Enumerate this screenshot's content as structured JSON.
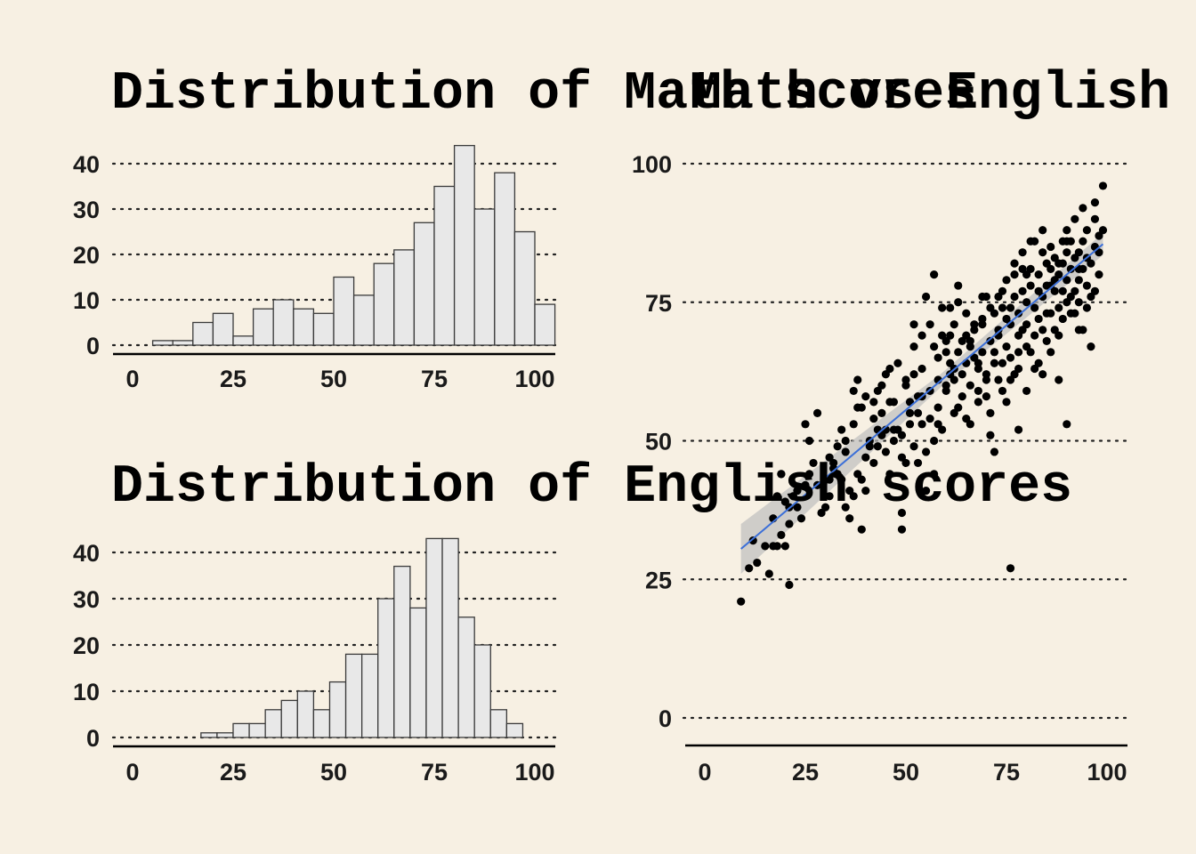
{
  "colors": {
    "background": "#f7f0e3",
    "bar_fill": "#e8e8e8",
    "bar_stroke": "#3a3a3a",
    "point": "#000000",
    "fit_line": "#3b6fd8",
    "confidence_band": "#bdbdbd"
  },
  "chart_data": [
    {
      "type": "bar",
      "title": "Distribution of Math scores",
      "xlim": [
        0,
        100
      ],
      "ylim": [
        0,
        40
      ],
      "x_ticks": [
        "0",
        "25",
        "50",
        "75",
        "100"
      ],
      "y_ticks": [
        "0",
        "10",
        "20",
        "30",
        "40"
      ],
      "grid": "horizontal dotted",
      "bin_width": 5,
      "bin_edges_start": 5,
      "values": [
        1,
        1,
        5,
        7,
        2,
        8,
        10,
        8,
        7,
        15,
        11,
        18,
        21,
        27,
        35,
        44,
        30,
        38,
        25,
        9
      ]
    },
    {
      "type": "bar",
      "title": "Distribution of English scores",
      "xlim": [
        0,
        100
      ],
      "ylim": [
        0,
        40
      ],
      "x_ticks": [
        "0",
        "25",
        "50",
        "75",
        "100"
      ],
      "y_ticks": [
        "0",
        "10",
        "20",
        "30",
        "40"
      ],
      "grid": "horizontal dotted",
      "bin_width": 4,
      "bin_edges_start": 17,
      "values": [
        1,
        1,
        3,
        3,
        6,
        8,
        10,
        6,
        12,
        18,
        18,
        30,
        37,
        28,
        43,
        43,
        26,
        20,
        6,
        3
      ]
    },
    {
      "type": "scatter",
      "title": "Math vs English",
      "xlim": [
        0,
        100
      ],
      "ylim": [
        0,
        100
      ],
      "x_ticks": [
        "0",
        "25",
        "50",
        "75",
        "100"
      ],
      "y_ticks": [
        "0",
        "25",
        "50",
        "75",
        "100"
      ],
      "grid": "horizontal dotted",
      "trend": {
        "x": [
          9,
          99
        ],
        "y": [
          30.5,
          85.5
        ],
        "band": [
          4.5,
          2.0
        ]
      },
      "points": [
        [
          9,
          21
        ],
        [
          11,
          27
        ],
        [
          16,
          26
        ],
        [
          18,
          31
        ],
        [
          19,
          33
        ],
        [
          20,
          31
        ],
        [
          21,
          24
        ],
        [
          17,
          31
        ],
        [
          18,
          40
        ],
        [
          19,
          44
        ],
        [
          20,
          39
        ],
        [
          21,
          38
        ],
        [
          23,
          41
        ],
        [
          24,
          36
        ],
        [
          25,
          53
        ],
        [
          26,
          44
        ],
        [
          28,
          42
        ],
        [
          30,
          38
        ],
        [
          31,
          40
        ],
        [
          31,
          47
        ],
        [
          32,
          46
        ],
        [
          33,
          49
        ],
        [
          33,
          44
        ],
        [
          34,
          43
        ],
        [
          35,
          50
        ],
        [
          35,
          38
        ],
        [
          36,
          36
        ],
        [
          37,
          53
        ],
        [
          37,
          40
        ],
        [
          38,
          56
        ],
        [
          38,
          61
        ],
        [
          39,
          43
        ],
        [
          39,
          34
        ],
        [
          40,
          58
        ],
        [
          40,
          41
        ],
        [
          41,
          50
        ],
        [
          42,
          54
        ],
        [
          42,
          46
        ],
        [
          43,
          49
        ],
        [
          43,
          52
        ],
        [
          44,
          55
        ],
        [
          44,
          60
        ],
        [
          45,
          62
        ],
        [
          45,
          48
        ],
        [
          46,
          63
        ],
        [
          46,
          57
        ],
        [
          47,
          57
        ],
        [
          48,
          64
        ],
        [
          48,
          52
        ],
        [
          49,
          37
        ],
        [
          49,
          47
        ],
        [
          49,
          34
        ],
        [
          50,
          46
        ],
        [
          50,
          60
        ],
        [
          51,
          57
        ],
        [
          51,
          53
        ],
        [
          52,
          49
        ],
        [
          52,
          67
        ],
        [
          53,
          58
        ],
        [
          53,
          55
        ],
        [
          54,
          53
        ],
        [
          54,
          63
        ],
        [
          55,
          41
        ],
        [
          55,
          76
        ],
        [
          56,
          54
        ],
        [
          56,
          59
        ],
        [
          57,
          50
        ],
        [
          57,
          80
        ],
        [
          58,
          56
        ],
        [
          58,
          53
        ],
        [
          59,
          52
        ],
        [
          59,
          74
        ],
        [
          60,
          60
        ],
        [
          60,
          66
        ],
        [
          61,
          62
        ],
        [
          61,
          69
        ],
        [
          62,
          63
        ],
        [
          62,
          71
        ],
        [
          63,
          56
        ],
        [
          63,
          66
        ],
        [
          63,
          78
        ],
        [
          64,
          62
        ],
        [
          64,
          68
        ],
        [
          65,
          73
        ],
        [
          65,
          54
        ],
        [
          66,
          67
        ],
        [
          66,
          60
        ],
        [
          67,
          65
        ],
        [
          67,
          70
        ],
        [
          68,
          64
        ],
        [
          68,
          59
        ],
        [
          69,
          71
        ],
        [
          69,
          66
        ],
        [
          70,
          62
        ],
        [
          70,
          76
        ],
        [
          71,
          55
        ],
        [
          71,
          68
        ],
        [
          72,
          73
        ],
        [
          72,
          66
        ],
        [
          72,
          48
        ],
        [
          73,
          61
        ],
        [
          73,
          69
        ],
        [
          74,
          74
        ],
        [
          74,
          64
        ],
        [
          75,
          57
        ],
        [
          75,
          67
        ],
        [
          75,
          79
        ],
        [
          76,
          71
        ],
        [
          76,
          65
        ],
        [
          77,
          76
        ],
        [
          77,
          62
        ],
        [
          77,
          82
        ],
        [
          78,
          73
        ],
        [
          78,
          66
        ],
        [
          78,
          69
        ],
        [
          79,
          77
        ],
        [
          79,
          84
        ],
        [
          80,
          59
        ],
        [
          80,
          71
        ],
        [
          80,
          75
        ],
        [
          81,
          66
        ],
        [
          81,
          78
        ],
        [
          81,
          81
        ],
        [
          82,
          74
        ],
        [
          82,
          69
        ],
        [
          83,
          64
        ],
        [
          83,
          72
        ],
        [
          83,
          80
        ],
        [
          84,
          76
        ],
        [
          84,
          62
        ],
        [
          84,
          84
        ],
        [
          85,
          73
        ],
        [
          85,
          78
        ],
        [
          85,
          68
        ],
        [
          86,
          81
        ],
        [
          86,
          73
        ],
        [
          86,
          85
        ],
        [
          87,
          70
        ],
        [
          87,
          77
        ],
        [
          87,
          83
        ],
        [
          88,
          61
        ],
        [
          88,
          74
        ],
        [
          88,
          80
        ],
        [
          89,
          86
        ],
        [
          89,
          72
        ],
        [
          89,
          77
        ],
        [
          90,
          79
        ],
        [
          90,
          84
        ],
        [
          90,
          88
        ],
        [
          90,
          53
        ],
        [
          91,
          73
        ],
        [
          91,
          81
        ],
        [
          91,
          86
        ],
        [
          92,
          77
        ],
        [
          92,
          83
        ],
        [
          92,
          90
        ],
        [
          93,
          75
        ],
        [
          93,
          79
        ],
        [
          93,
          84
        ],
        [
          94,
          81
        ],
        [
          94,
          86
        ],
        [
          94,
          92
        ],
        [
          95,
          78
        ],
        [
          95,
          88
        ],
        [
          96,
          82
        ],
        [
          96,
          67
        ],
        [
          97,
          85
        ],
        [
          97,
          90
        ],
        [
          97,
          93
        ],
        [
          98,
          87
        ],
        [
          98,
          80
        ],
        [
          99,
          96
        ],
        [
          99,
          88
        ],
        [
          76,
          27
        ],
        [
          71,
          51
        ],
        [
          78,
          52
        ],
        [
          61,
          64
        ],
        [
          65,
          64
        ],
        [
          62,
          61
        ],
        [
          66,
          68
        ],
        [
          69,
          72
        ],
        [
          70,
          58
        ],
        [
          68,
          63
        ],
        [
          73,
          70
        ],
        [
          74,
          77
        ],
        [
          79,
          70
        ],
        [
          76,
          74
        ],
        [
          82,
          86
        ],
        [
          80,
          80
        ],
        [
          84,
          88
        ],
        [
          88,
          82
        ],
        [
          86,
          78
        ],
        [
          90,
          86
        ],
        [
          93,
          70
        ],
        [
          95,
          74
        ],
        [
          58,
          61
        ],
        [
          60,
          68
        ],
        [
          57,
          67
        ],
        [
          54,
          58
        ],
        [
          52,
          62
        ],
        [
          50,
          61
        ],
        [
          47,
          52
        ],
        [
          44,
          51
        ],
        [
          46,
          44
        ],
        [
          42,
          57
        ],
        [
          40,
          47
        ],
        [
          38,
          44
        ],
        [
          36,
          41
        ],
        [
          34,
          52
        ],
        [
          31,
          43
        ],
        [
          29,
          37
        ],
        [
          27,
          46
        ],
        [
          25,
          42
        ],
        [
          23,
          38
        ],
        [
          21,
          35
        ],
        [
          19,
          44
        ],
        [
          17,
          36
        ],
        [
          15,
          31
        ],
        [
          13,
          28
        ],
        [
          12,
          32
        ],
        [
          22,
          40
        ],
        [
          26,
          50
        ],
        [
          28,
          55
        ],
        [
          32,
          45
        ],
        [
          35,
          48
        ],
        [
          37,
          59
        ],
        [
          39,
          56
        ],
        [
          41,
          49
        ],
        [
          43,
          59
        ],
        [
          45,
          52
        ],
        [
          47,
          50
        ],
        [
          49,
          51
        ],
        [
          51,
          55
        ],
        [
          53,
          46
        ],
        [
          55,
          48
        ],
        [
          57,
          44
        ],
        [
          59,
          69
        ],
        [
          61,
          74
        ],
        [
          63,
          75
        ],
        [
          65,
          69
        ],
        [
          67,
          71
        ],
        [
          69,
          76
        ],
        [
          71,
          74
        ],
        [
          73,
          76
        ],
        [
          75,
          72
        ],
        [
          77,
          80
        ],
        [
          79,
          81
        ],
        [
          81,
          86
        ],
        [
          83,
          77
        ],
        [
          85,
          82
        ],
        [
          87,
          79
        ],
        [
          89,
          82
        ],
        [
          91,
          76
        ],
        [
          93,
          81
        ],
        [
          95,
          83
        ],
        [
          97,
          77
        ],
        [
          98,
          84
        ],
        [
          96,
          76
        ],
        [
          94,
          70
        ],
        [
          92,
          73
        ],
        [
          90,
          75
        ],
        [
          88,
          69
        ],
        [
          86,
          66
        ],
        [
          84,
          70
        ],
        [
          82,
          63
        ],
        [
          80,
          67
        ],
        [
          78,
          63
        ],
        [
          76,
          61
        ],
        [
          74,
          59
        ],
        [
          72,
          64
        ],
        [
          70,
          61
        ],
        [
          68,
          57
        ],
        [
          66,
          53
        ],
        [
          64,
          58
        ],
        [
          62,
          55
        ],
        [
          60,
          59
        ],
        [
          58,
          65
        ],
        [
          56,
          71
        ],
        [
          54,
          69
        ],
        [
          52,
          71
        ]
      ]
    }
  ]
}
